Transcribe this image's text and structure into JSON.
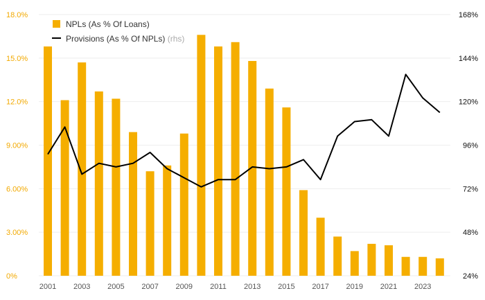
{
  "chart_data": {
    "type": "bar+line",
    "x": [
      2001,
      2002,
      2003,
      2004,
      2005,
      2006,
      2007,
      2008,
      2009,
      2010,
      2011,
      2012,
      2013,
      2014,
      2015,
      2016,
      2017,
      2018,
      2019,
      2020,
      2021,
      2022,
      2023,
      2024
    ],
    "x_tick_labels": [
      "2001",
      "2003",
      "2005",
      "2007",
      "2009",
      "2011",
      "2013",
      "2015",
      "2017",
      "2019",
      "2021",
      "2023"
    ],
    "series": [
      {
        "name": "NPLs (As % Of Loans)",
        "type": "bar",
        "axis": "left",
        "color": "#f5ae00",
        "values": [
          15.8,
          12.1,
          14.7,
          12.7,
          12.2,
          9.9,
          7.2,
          7.6,
          9.8,
          16.6,
          15.8,
          16.1,
          14.8,
          12.9,
          11.6,
          5.9,
          4.0,
          2.7,
          1.7,
          2.2,
          2.1,
          1.3,
          1.3,
          1.2
        ]
      },
      {
        "name": "Provisions (As % Of NPLs)",
        "name_suffix": "(rhs)",
        "type": "line",
        "axis": "right",
        "color": "#000000",
        "values": [
          91,
          106,
          80,
          86,
          84,
          86,
          92,
          83,
          78,
          73,
          77,
          77,
          84,
          83,
          84,
          88,
          77,
          101,
          109,
          110,
          101,
          135,
          122,
          114
        ]
      }
    ],
    "y_left": {
      "ylim": [
        0,
        18
      ],
      "ticks": [
        0,
        3,
        6,
        9,
        12,
        15,
        18
      ],
      "tick_labels": [
        "0%",
        "3.00%",
        "6.00%",
        "9.00%",
        "12.0%",
        "15.0%",
        "18.0%"
      ],
      "color": "#f2a900"
    },
    "y_right": {
      "ylim": [
        24,
        168
      ],
      "ticks": [
        24,
        48,
        72,
        96,
        120,
        144,
        168
      ],
      "tick_labels": [
        "24%",
        "48%",
        "72%",
        "96%",
        "120%",
        "144%",
        "168%"
      ]
    },
    "legend": {
      "position": "top-left"
    },
    "grid": true,
    "title": "",
    "xlabel": "",
    "ylabel": ""
  }
}
